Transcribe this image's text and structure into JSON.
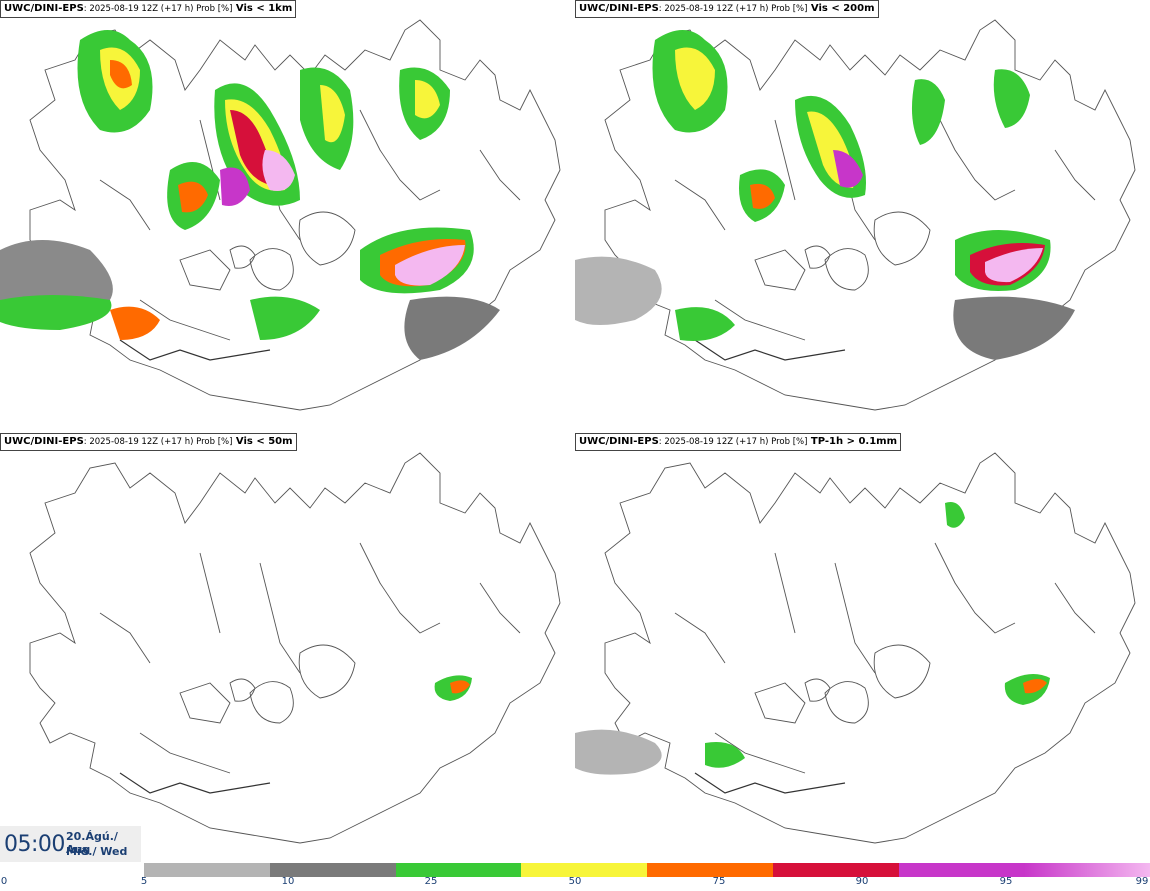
{
  "panels": [
    {
      "model": "UWC/DINI-EPS",
      "meta": ": 2025-08-19 12Z (+17 h) Prob [%]",
      "var": " Vis < 1km"
    },
    {
      "model": "UWC/DINI-EPS",
      "meta": ": 2025-08-19 12Z (+17 h) Prob [%]",
      "var": " Vis < 200m"
    },
    {
      "model": "UWC/DINI-EPS",
      "meta": ": 2025-08-19 12Z (+17 h) Prob [%]",
      "var": " Vis < 50m"
    },
    {
      "model": "UWC/DINI-EPS",
      "meta": ": 2025-08-19 12Z (+17 h) Prob [%]",
      "var": " TP-1h > 0.1mm"
    }
  ],
  "time": {
    "clock": "05:00",
    "date_line1": "20.Ágú./ Aug",
    "date_line2": "Mið./ Wed"
  },
  "colorbar": {
    "colors": [
      "#ffffff",
      "#b4b4b4",
      "#7a7a7a",
      "#39c936",
      "#f7f53a",
      "#ff6a00",
      "#d6103a",
      "#c736c9",
      "#f4b8f0"
    ],
    "labels": [
      "0",
      "5",
      "10",
      "25",
      "50",
      "75",
      "90",
      "95",
      "99"
    ]
  }
}
